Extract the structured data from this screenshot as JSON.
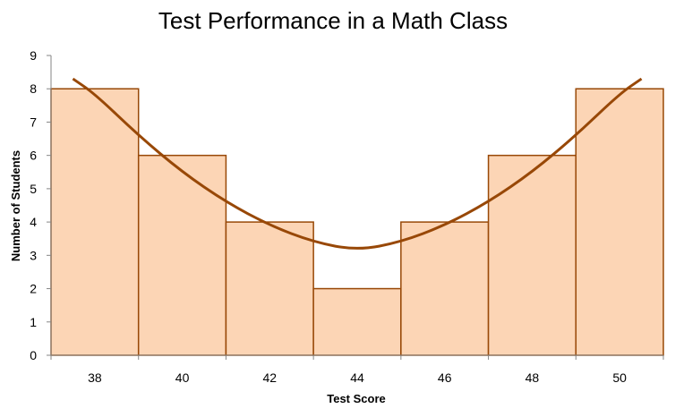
{
  "chart_data": {
    "type": "bar",
    "title": "Test Performance in a Math Class",
    "xlabel": "Test Score",
    "ylabel": "Number of Students",
    "categories": [
      "38",
      "40",
      "42",
      "44",
      "46",
      "48",
      "50"
    ],
    "values": [
      8,
      6,
      4,
      2,
      4,
      6,
      8
    ],
    "ylim": [
      0,
      9
    ],
    "yticks": [
      "0",
      "1",
      "2",
      "3",
      "4",
      "5",
      "6",
      "7",
      "8",
      "9"
    ],
    "grid": false,
    "legend": "none",
    "trendline": {
      "type": "polynomial",
      "x": [
        37.5,
        38,
        39,
        40,
        41,
        42,
        43,
        44,
        45,
        46,
        47,
        48,
        49,
        50,
        50.5
      ],
      "y": [
        8.3,
        7.85,
        6.6,
        5.5,
        4.6,
        3.9,
        3.4,
        3.15,
        3.4,
        3.9,
        4.6,
        5.5,
        6.6,
        7.85,
        8.3
      ]
    },
    "colors": {
      "bar_fill": "#fcd5b5",
      "bar_stroke": "#984807",
      "trendline": "#984807"
    }
  }
}
